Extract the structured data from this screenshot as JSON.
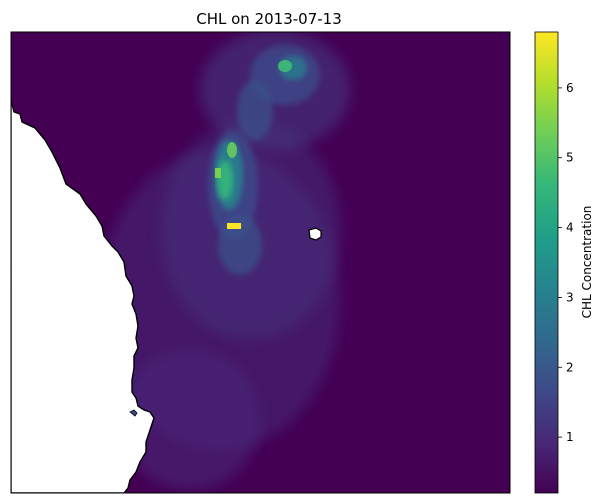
{
  "map": {
    "title": "CHL on 2013-07-13",
    "variable": "CHL",
    "date": "2013-07-13",
    "colormap": "viridis",
    "land_color": "#ffffff",
    "coastline_color": "#000000",
    "background_low_color": "#440154"
  },
  "colorbar": {
    "label": "CHL Concentration",
    "range": [
      0.2,
      6.8
    ],
    "ticks": [
      "1",
      "2",
      "3",
      "4",
      "5",
      "6"
    ],
    "tick_values": [
      1,
      2,
      3,
      4,
      5,
      6
    ],
    "colors": [
      "#440154",
      "#482878",
      "#3e4989",
      "#31688e",
      "#26828e",
      "#1f9e89",
      "#35b779",
      "#6ece58",
      "#b5de2b",
      "#fde725"
    ]
  }
}
